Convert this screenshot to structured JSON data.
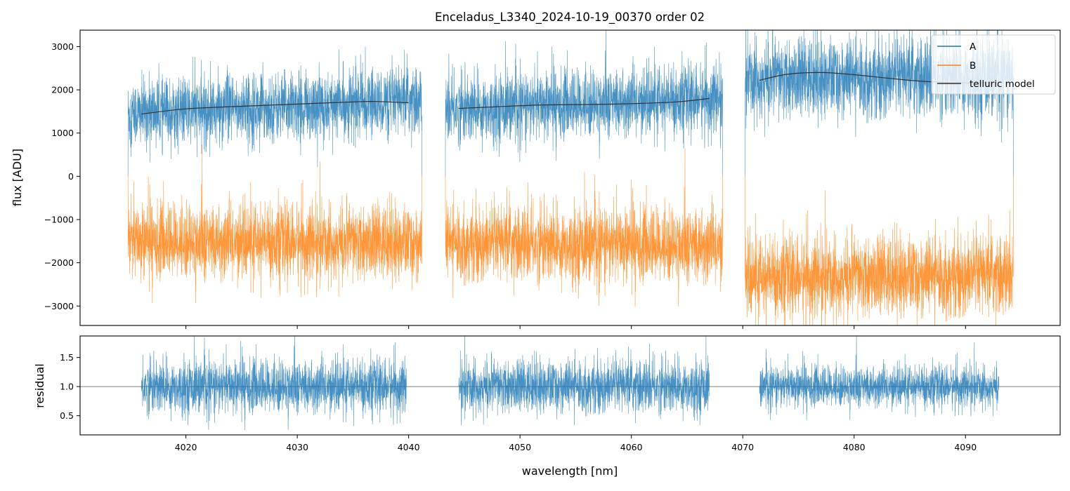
{
  "chart_data": {
    "type": "line",
    "title": "Enceladus_L3340_2024-10-19_00370  order 02",
    "xlabel": "wavelength [nm]",
    "xlim": [
      4010.5,
      4098.5
    ],
    "x_ticks": [
      4020,
      4030,
      4040,
      4050,
      4060,
      4070,
      4080,
      4090
    ],
    "grid": false,
    "legend_position": "top-right",
    "colors": {
      "A": "#1f77b4",
      "B": "#ff7f0e",
      "telluric": "#333333",
      "unity": "#555555"
    },
    "panels": [
      {
        "name": "flux",
        "ylabel": "flux [ADU]",
        "ylim": [
          -3450,
          3380
        ],
        "y_ticks": [
          3000,
          2000,
          1000,
          0,
          -1000,
          -2000,
          -3000
        ],
        "y_tick_labels": [
          "3000",
          "2000",
          "1000",
          "0",
          "−1000",
          "−2000",
          "−3000"
        ],
        "series": [
          {
            "name": "A",
            "segments": [
              {
                "x_range": [
                  4014.8,
                  4041.2
                ],
                "mean": [
                  1450,
                  1750
                ],
                "noise": 380
              },
              {
                "x_range": [
                  4043.3,
                  4068.2
                ],
                "mean": [
                  1550,
                  1800
                ],
                "noise": 380
              },
              {
                "x_range": [
                  4070.2,
                  4094.3
                ],
                "mean": [
                  2250,
                  2300
                ],
                "noise": 450
              }
            ]
          },
          {
            "name": "B",
            "segments": [
              {
                "x_range": [
                  4014.8,
                  4041.2
                ],
                "mean": [
                  -1500,
                  -1550
                ],
                "noise": 420
              },
              {
                "x_range": [
                  4043.3,
                  4068.2
                ],
                "mean": [
                  -1550,
                  -1600
                ],
                "noise": 420
              },
              {
                "x_range": [
                  4070.2,
                  4094.3
                ],
                "mean": [
                  -2350,
                  -2300
                ],
                "noise": 450
              }
            ]
          },
          {
            "name": "telluric model",
            "segments": [
              {
                "x": [
                  4016,
                  4020,
                  4025,
                  4030,
                  4035,
                  4037,
                  4040
                ],
                "y": [
                  1440,
                  1560,
                  1620,
                  1670,
                  1720,
                  1730,
                  1700
                ]
              },
              {
                "x": [
                  4044.5,
                  4048,
                  4052,
                  4056,
                  4060,
                  4064,
                  4067
                ],
                "y": [
                  1570,
                  1610,
                  1650,
                  1660,
                  1680,
                  1720,
                  1800
                ]
              },
              {
                "x": [
                  4071.5,
                  4074,
                  4077,
                  4080,
                  4083,
                  4086,
                  4090,
                  4093
                ],
                "y": [
                  2220,
                  2360,
                  2400,
                  2350,
                  2270,
                  2200,
                  2160,
                  2180
                ]
              }
            ]
          }
        ]
      },
      {
        "name": "residual",
        "ylabel": "residual",
        "ylim": [
          0.17,
          1.87
        ],
        "y_ticks": [
          1.5,
          1.0,
          0.5
        ],
        "y_tick_labels": [
          "1.5",
          "1.0",
          "0.5"
        ],
        "reference_line": 1.0,
        "series": [
          {
            "name": "residual",
            "segments": [
              {
                "x_range": [
                  4016.0,
                  4039.8
                ],
                "mean": [
                  1.0,
                  1.0
                ],
                "noise": 0.22
              },
              {
                "x_range": [
                  4044.5,
                  4067.0
                ],
                "mean": [
                  1.0,
                  1.0
                ],
                "noise": 0.22
              },
              {
                "x_range": [
                  4071.5,
                  4093.0
                ],
                "mean": [
                  1.0,
                  1.0
                ],
                "noise": 0.17
              }
            ]
          }
        ]
      }
    ],
    "legend": [
      "A",
      "B",
      "telluric model"
    ]
  }
}
